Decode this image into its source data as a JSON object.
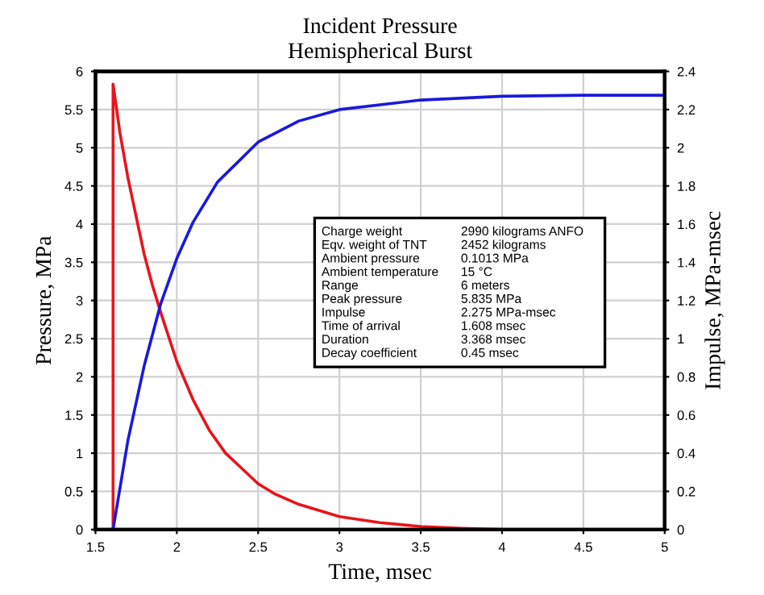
{
  "chart_data": {
    "type": "line",
    "title": "Incident Pressure\nHemispherical Burst",
    "xlabel": "Time, msec",
    "ylabel": "Pressure, MPa",
    "y2label": "Impulse, MPa-msec",
    "series": [
      {
        "color": "#e8141b",
        "x": [
          1.6,
          1.608,
          1.608,
          1.65,
          1.7,
          1.75,
          1.8,
          1.85,
          1.9,
          2.0,
          2.1,
          2.2,
          2.3,
          2.4,
          2.5,
          2.6,
          2.75,
          3.0,
          3.25,
          3.5,
          3.75,
          4.0
        ],
        "values": [
          0,
          0,
          5.835,
          5.2,
          4.6,
          4.1,
          3.6,
          3.2,
          2.85,
          2.2,
          1.7,
          1.3,
          1.0,
          0.8,
          0.6,
          0.47,
          0.33,
          0.17,
          0.09,
          0.04,
          0.015,
          0
        ]
      },
      {
        "color": "#1a1adb",
        "axis": "y2",
        "x": [
          1.608,
          1.7,
          1.8,
          1.9,
          2.0,
          2.1,
          2.25,
          2.5,
          2.75,
          3.0,
          3.5,
          4.0,
          4.5,
          5.0
        ],
        "values": [
          0,
          0.47,
          0.86,
          1.18,
          1.42,
          1.61,
          1.82,
          2.03,
          2.14,
          2.2,
          2.25,
          2.27,
          2.275,
          2.275
        ]
      }
    ],
    "xlim": [
      1.5,
      5
    ],
    "xticks": [
      1.5,
      2,
      2.5,
      3,
      3.5,
      4,
      4.5,
      5
    ],
    "ylim": [
      0,
      6
    ],
    "yticks": [
      0,
      0.5,
      1,
      1.5,
      2,
      2.5,
      3,
      3.5,
      4,
      4.5,
      5,
      5.5,
      6
    ],
    "y2lim": [
      0,
      2.4
    ],
    "y2ticks": [
      0,
      0.2,
      0.4,
      0.6,
      0.8,
      1,
      1.2,
      1.4,
      1.6,
      1.8,
      2,
      2.2,
      2.4
    ],
    "grid": true,
    "legend": false,
    "annotations": [
      "Charge weight",
      "2990 kilograms ANFO",
      "Eqv. weight of TNT",
      "2452 kilograms",
      "Ambient pressure",
      "0.1013 MPa",
      "Ambient temperature",
      "15 °C",
      "Range",
      "6 meters",
      "Peak pressure",
      "5.835 MPa",
      "Impulse",
      "2.275 MPa-msec",
      "Time of arrival",
      "1.608 msec",
      "Duration",
      "3.368 msec",
      "Decay coefficient",
      "0.45 msec"
    ]
  }
}
